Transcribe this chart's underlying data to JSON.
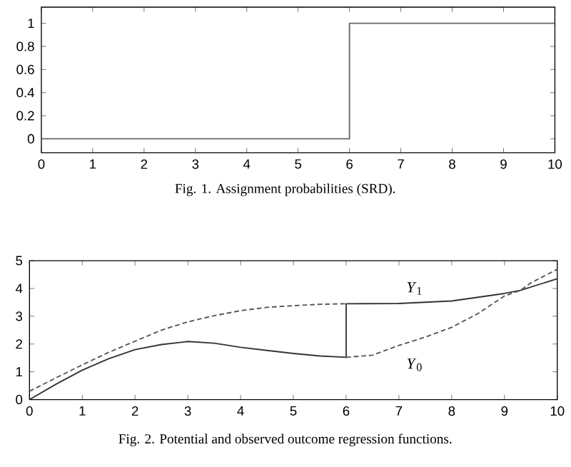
{
  "chart_data": [
    {
      "type": "line",
      "title": "Fig. 1. Assignment probabilities (SRD).",
      "xlim": [
        0,
        10
      ],
      "ylim": [
        -0.12,
        1.14
      ],
      "xticks": [
        0,
        1,
        2,
        3,
        4,
        5,
        6,
        7,
        8,
        9,
        10
      ],
      "yticks": [
        0,
        0.2,
        0.4,
        0.6,
        0.8,
        1
      ],
      "series": [
        {
          "color": "#666666",
          "x": [
            0,
            6,
            6,
            10
          ],
          "values": [
            0,
            0,
            1,
            1
          ]
        }
      ]
    },
    {
      "type": "line",
      "title": "Fig. 2. Potential and observed outcome regression functions.",
      "xlim": [
        0,
        10
      ],
      "ylim": [
        0,
        5
      ],
      "xticks": [
        0,
        1,
        2,
        3,
        4,
        5,
        6,
        7,
        8,
        9,
        10
      ],
      "yticks": [
        0,
        1,
        2,
        3,
        4,
        5
      ],
      "series": [
        {
          "color": "#333333",
          "line_style": "solid",
          "x": [
            0,
            0.5,
            1,
            1.5,
            2,
            2.5,
            3,
            3.5,
            4,
            4.5,
            5,
            5.5,
            6,
            6,
            7,
            8,
            9,
            9.3,
            10
          ],
          "values": [
            0,
            0.55,
            1.06,
            1.47,
            1.8,
            1.98,
            2.09,
            2.03,
            1.88,
            1.77,
            1.66,
            1.57,
            1.52,
            3.45,
            3.46,
            3.55,
            3.82,
            3.93,
            4.35
          ]
        },
        {
          "color": "#555555",
          "line_style": "dashed",
          "x": [
            0,
            0.5,
            1,
            1.5,
            2,
            2.5,
            3,
            3.5,
            4,
            4.5,
            5,
            5.5,
            6
          ],
          "values": [
            0.3,
            0.78,
            1.25,
            1.7,
            2.1,
            2.5,
            2.8,
            3.02,
            3.2,
            3.32,
            3.38,
            3.43,
            3.45
          ]
        },
        {
          "color": "#555555",
          "line_style": "dashed",
          "x": [
            6,
            6.5,
            7,
            7.5,
            8,
            8.5,
            9,
            9.3,
            9.5,
            10
          ],
          "values": [
            1.52,
            1.6,
            1.95,
            2.25,
            2.6,
            3.1,
            3.73,
            3.93,
            4.2,
            4.69
          ]
        }
      ],
      "annotations": [
        "*Y*$_{1}$",
        "*Y*$_{0}$"
      ]
    }
  ]
}
